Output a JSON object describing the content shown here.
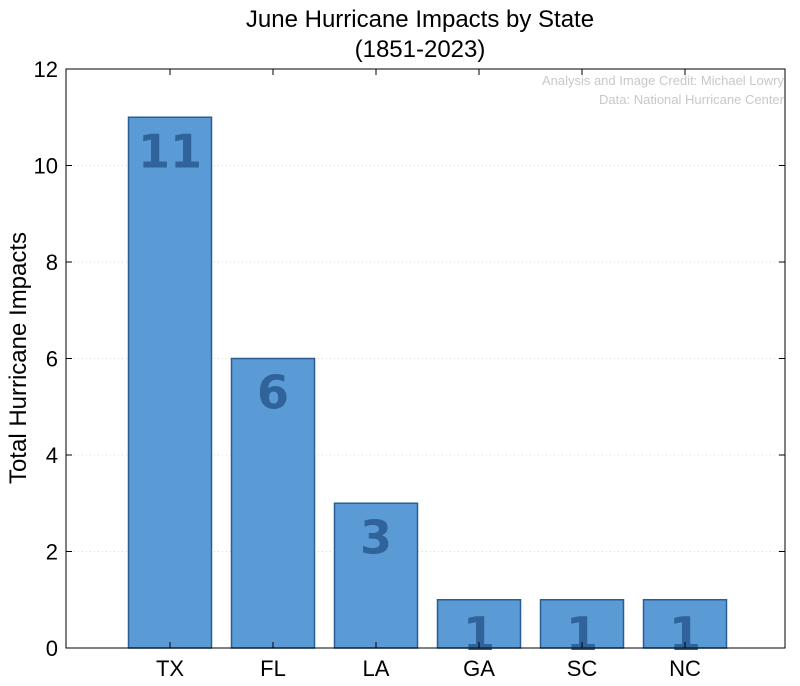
{
  "chart_data": {
    "type": "bar",
    "title": "June Hurricane Impacts by State",
    "subtitle": "(1851-2023)",
    "xlabel": "",
    "ylabel": "Total Hurricane Impacts",
    "categories": [
      "TX",
      "FL",
      "LA",
      "GA",
      "SC",
      "NC"
    ],
    "values": [
      11,
      6,
      3,
      1,
      1,
      1
    ],
    "data_labels": [
      "11",
      "6",
      "3",
      "1",
      "1",
      "1"
    ],
    "ylim": [
      0,
      12
    ],
    "yticks": [
      "0",
      "2",
      "4",
      "6",
      "8",
      "10",
      "12"
    ],
    "ytick_values": [
      0,
      2,
      4,
      6,
      8,
      10,
      12
    ],
    "grid": true,
    "annotations": [
      "Analysis and Image Credit: Michael Lowry",
      "Data: National Hurricane Center"
    ],
    "colors": {
      "bar_fill": "#5b9bd5",
      "bar_edge": "#2a5d92",
      "data_label": "#2f639a",
      "credit_text": "#c8c8c8"
    }
  }
}
